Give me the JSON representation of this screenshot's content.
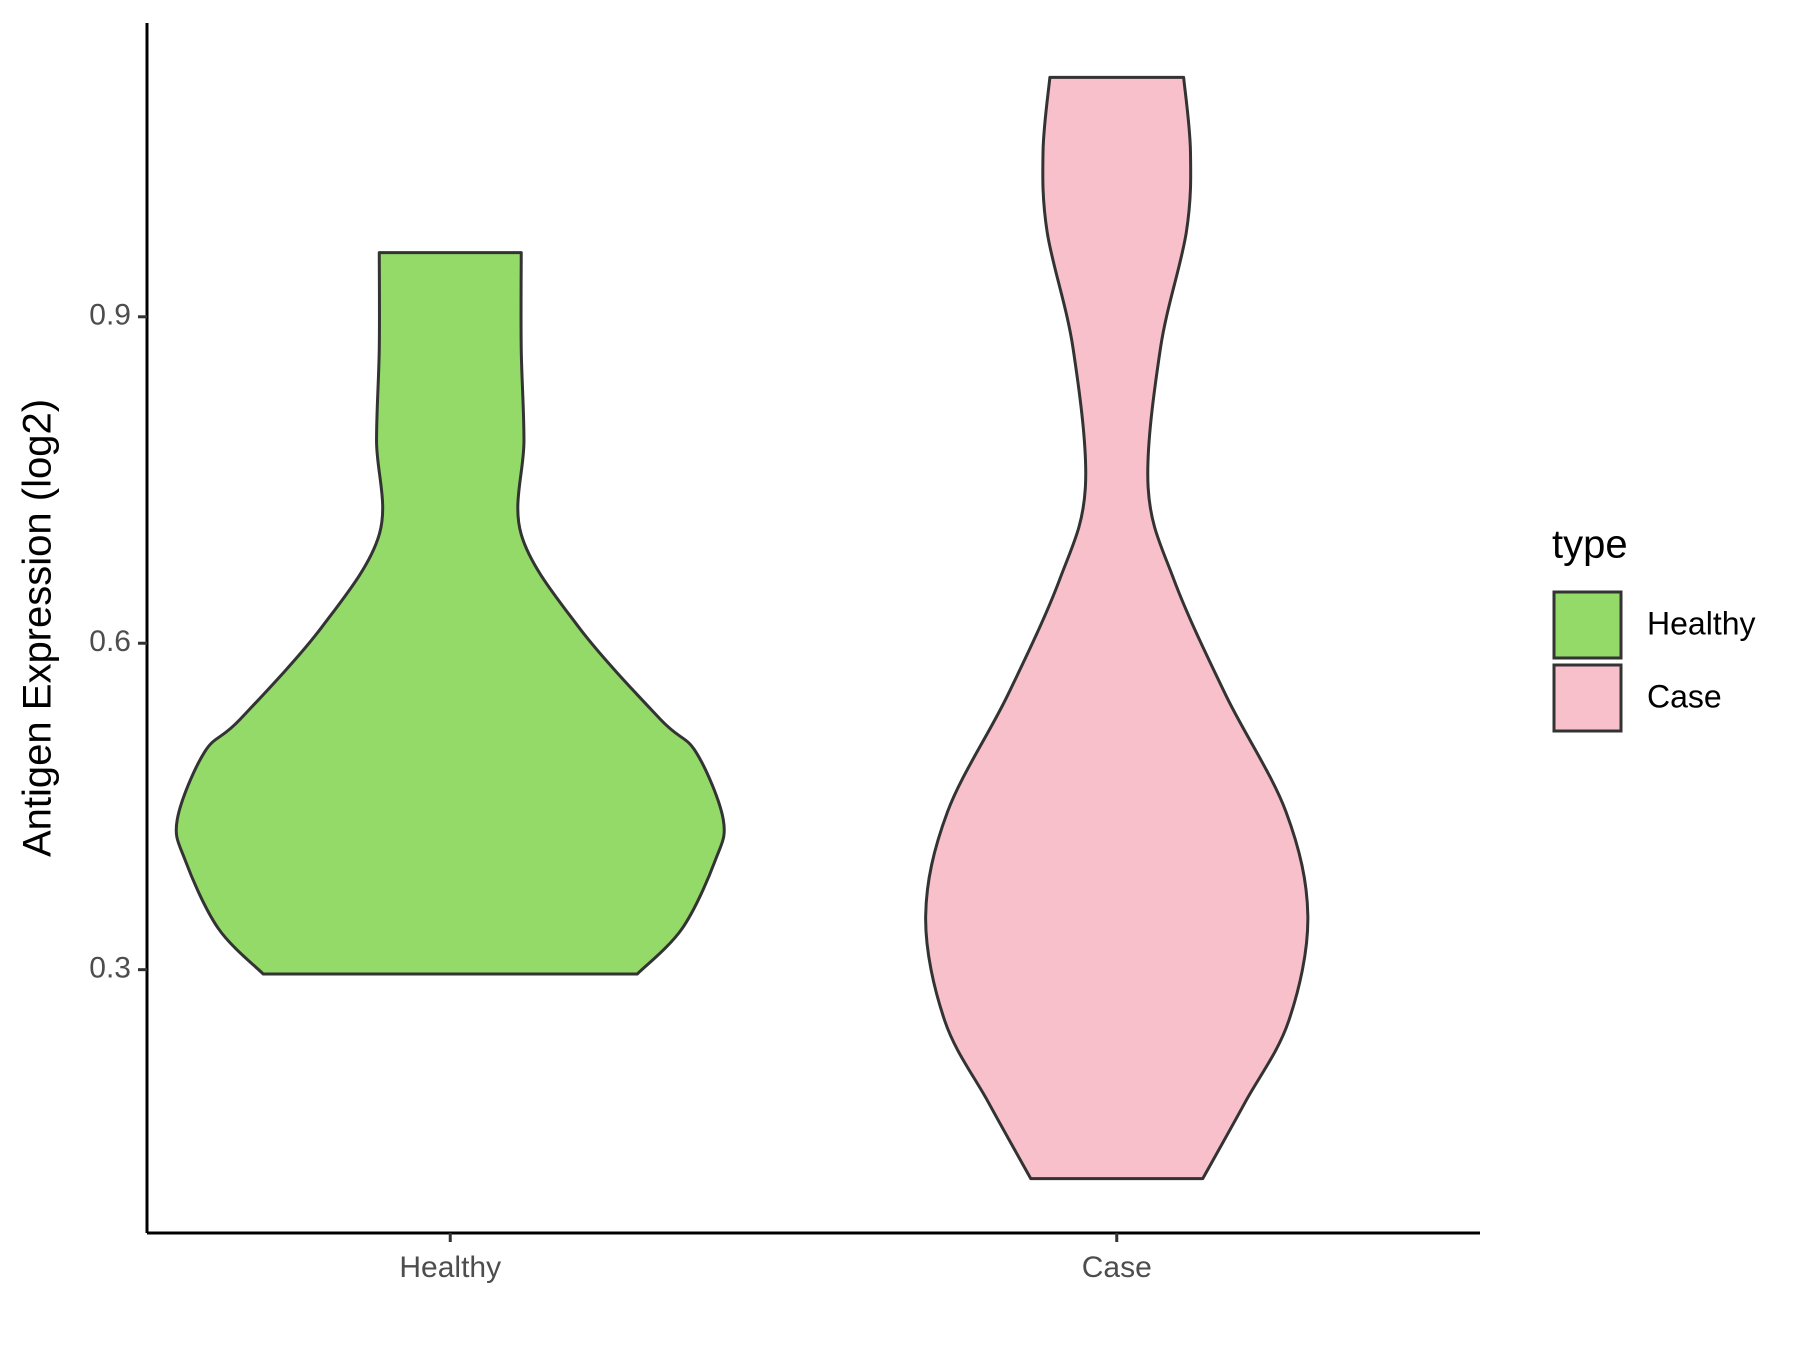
{
  "chart_data": {
    "type": "violin",
    "y_label": "Antigen Expression (log2)",
    "categories": [
      "Healthy",
      "Case"
    ],
    "series": [
      {
        "name": "Healthy",
        "color": "#93DA69",
        "y": [
          0.296,
          0.338,
          0.4,
          0.438,
          0.5,
          0.53,
          0.615,
          0.7,
          0.786,
          0.871,
          0.959
        ],
        "width": [
          0.685,
          0.85,
          0.97,
          1.0,
          0.9,
          0.77,
          0.47,
          0.26,
          0.27,
          0.26,
          0.26
        ]
      },
      {
        "name": "Case",
        "color": "#F7C0CB",
        "y": [
          0.108,
          0.178,
          0.253,
          0.349,
          0.445,
          0.552,
          0.658,
          0.743,
          0.871,
          0.978,
          1.052,
          1.12
        ],
        "width": [
          0.315,
          0.47,
          0.63,
          0.7,
          0.62,
          0.4,
          0.21,
          0.115,
          0.16,
          0.255,
          0.27,
          0.245
        ]
      }
    ],
    "ylim": [
      0.058,
      1.17
    ],
    "yticks": [
      0.3,
      0.6,
      0.9
    ],
    "grid": false,
    "legend_title": "type",
    "legend": "right"
  }
}
